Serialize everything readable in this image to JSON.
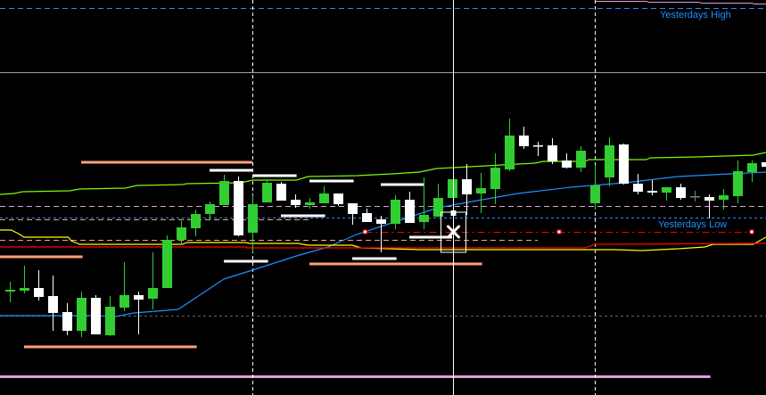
{
  "chart_data": {
    "type": "candlestick",
    "ylim": [
      1.1,
      1.1443
    ],
    "xlim": [
      -0.7,
      53
    ],
    "grid": false,
    "colors": {
      "bull": "#32cd32",
      "bear": "#ffffff",
      "doji": "#808080",
      "background": "#000000"
    },
    "candles": [
      [
        1.1116,
        1.1127,
        1.1104,
        1.1118
      ],
      [
        1.1117,
        1.1145,
        1.1114,
        1.112
      ],
      [
        1.112,
        1.114,
        1.1106,
        1.111
      ],
      [
        1.1111,
        1.1134,
        1.1072,
        1.1092
      ],
      [
        1.1093,
        1.1103,
        1.1067,
        1.1072
      ],
      [
        1.1072,
        1.1116,
        1.1065,
        1.1109
      ],
      [
        1.1109,
        1.1112,
        1.1068,
        1.1068
      ],
      [
        1.1067,
        1.1111,
        1.1066,
        1.1099
      ],
      [
        1.1098,
        1.1149,
        1.1094,
        1.1112
      ],
      [
        1.1112,
        1.1116,
        1.1068,
        1.1107
      ],
      [
        1.1108,
        1.116,
        1.1096,
        1.112
      ],
      [
        1.112,
        1.1179,
        1.112,
        1.1174
      ],
      [
        1.1174,
        1.1195,
        1.1169,
        1.1188
      ],
      [
        1.1187,
        1.1208,
        1.1178,
        1.1203
      ],
      [
        1.1203,
        1.1217,
        1.1196,
        1.1214
      ],
      [
        1.1213,
        1.1247,
        1.1213,
        1.124
      ],
      [
        1.124,
        1.1245,
        1.1178,
        1.1179
      ],
      [
        1.1182,
        1.1224,
        1.116,
        1.1214
      ],
      [
        1.1216,
        1.1242,
        1.1216,
        1.1238
      ],
      [
        1.1237,
        1.1239,
        1.1218,
        1.1218
      ],
      [
        1.1219,
        1.1225,
        1.121,
        1.1213
      ],
      [
        1.1213,
        1.1221,
        1.1209,
        1.1216
      ],
      [
        1.1215,
        1.1234,
        1.1215,
        1.1226
      ],
      [
        1.1226,
        1.1226,
        1.1212,
        1.1214
      ],
      [
        1.1215,
        1.1215,
        1.1191,
        1.1203
      ],
      [
        1.1204,
        1.1209,
        1.1194,
        1.1194
      ],
      [
        1.1197,
        1.1201,
        1.116,
        1.1192
      ],
      [
        1.1192,
        1.1224,
        1.1186,
        1.1219
      ],
      [
        1.1219,
        1.1228,
        1.1193,
        1.1193
      ],
      [
        1.1194,
        1.1244,
        1.1186,
        1.1202
      ],
      [
        1.12,
        1.1237,
        1.12,
        1.1221
      ],
      [
        1.1221,
        1.1242,
        1.1221,
        1.1242
      ],
      [
        1.1242,
        1.1259,
        1.1202,
        1.1225
      ],
      [
        1.1226,
        1.1249,
        1.1204,
        1.1232
      ],
      [
        1.1231,
        1.1271,
        1.1214,
        1.1255
      ],
      [
        1.1253,
        1.131,
        1.1251,
        1.1291
      ],
      [
        1.1291,
        1.1301,
        1.1276,
        1.1279
      ],
      [
        1.128,
        1.1284,
        1.1268,
        1.1279
      ],
      [
        1.128,
        1.1288,
        1.1259,
        1.1262
      ],
      [
        1.1263,
        1.1271,
        1.1254,
        1.1255
      ],
      [
        1.1255,
        1.1279,
        1.125,
        1.1274
      ],
      [
        1.1215,
        1.1258,
        1.1208,
        1.1235
      ],
      [
        1.1244,
        1.1289,
        1.1234,
        1.128
      ],
      [
        1.1281,
        1.1282,
        1.1236,
        1.1237
      ],
      [
        1.1237,
        1.1248,
        1.1225,
        1.1228
      ],
      [
        1.1229,
        1.1241,
        1.1224,
        1.1227
      ],
      [
        1.1227,
        1.1233,
        1.1218,
        1.1233
      ],
      [
        1.1233,
        1.1237,
        1.1219,
        1.1221
      ],
      [
        1.1223,
        1.1229,
        1.1217,
        1.1223
      ],
      [
        1.1222,
        1.1225,
        1.1198,
        1.1218
      ],
      [
        1.1219,
        1.1231,
        1.1208,
        1.1224
      ],
      [
        1.1223,
        1.1263,
        1.1215,
        1.1251
      ],
      [
        1.125,
        1.1263,
        1.1239,
        1.126
      ],
      [
        1.1261,
        1.1261,
        1.1256,
        1.1256
      ]
    ],
    "indicator_lines": [
      {
        "color": "#7cfc00",
        "points": [
          [
            -0.7,
            1.1225
          ],
          [
            0.3,
            1.1226
          ],
          [
            0.9,
            1.1228
          ],
          [
            4.2,
            1.1229
          ],
          [
            4.9,
            1.1231
          ],
          [
            8.1,
            1.1232
          ],
          [
            8.9,
            1.1235
          ],
          [
            12.1,
            1.1236
          ],
          [
            12.4,
            1.1237
          ],
          [
            16.2,
            1.1238
          ],
          [
            17,
            1.1241
          ],
          [
            20.1,
            1.1241
          ],
          [
            20.9,
            1.1245
          ],
          [
            24.3,
            1.1246
          ],
          [
            26.8,
            1.1248
          ],
          [
            28.7,
            1.125
          ],
          [
            29.9,
            1.1254
          ],
          [
            36.8,
            1.126
          ],
          [
            37.4,
            1.1262
          ],
          [
            40.3,
            1.1262
          ],
          [
            40.6,
            1.1264
          ],
          [
            44.6,
            1.1264
          ],
          [
            44.9,
            1.1266
          ],
          [
            48.1,
            1.1267
          ],
          [
            52.1,
            1.1269
          ],
          [
            53,
            1.1272
          ]
        ]
      },
      {
        "color": "#1e90ff",
        "points": [
          [
            -0.7,
            1.1089
          ],
          [
            5.6,
            1.1089
          ],
          [
            7.4,
            1.1088
          ],
          [
            8.7,
            1.1092
          ],
          [
            11.8,
            1.1096
          ],
          [
            15,
            1.113
          ],
          [
            16.8,
            1.1139
          ],
          [
            20.1,
            1.1156
          ],
          [
            22.3,
            1.1166
          ],
          [
            24.3,
            1.118
          ],
          [
            26.2,
            1.119
          ],
          [
            28.1,
            1.12
          ],
          [
            30,
            1.121
          ],
          [
            32.4,
            1.1217
          ],
          [
            35.6,
            1.1226
          ],
          [
            39.3,
            1.1233
          ],
          [
            43.1,
            1.1238
          ],
          [
            46.8,
            1.1245
          ],
          [
            53,
            1.125
          ]
        ]
      },
      {
        "color": "#ffff00",
        "points": [
          [
            -0.7,
            1.1185
          ],
          [
            0.1,
            1.1185
          ],
          [
            0.6,
            1.1181
          ],
          [
            1,
            1.1177
          ],
          [
            4.1,
            1.1177
          ],
          [
            4.3,
            1.1173
          ],
          [
            4.9,
            1.1169
          ],
          [
            12.1,
            1.1169
          ],
          [
            12.4,
            1.1171
          ],
          [
            16.5,
            1.1171
          ],
          [
            16.8,
            1.117
          ],
          [
            20.2,
            1.117
          ],
          [
            20.9,
            1.1168
          ],
          [
            24,
            1.1168
          ],
          [
            24.6,
            1.1165
          ],
          [
            28.7,
            1.1163
          ],
          [
            42.4,
            1.1163
          ],
          [
            44.3,
            1.1162
          ],
          [
            46.8,
            1.1164
          ],
          [
            48.7,
            1.1166
          ],
          [
            49.3,
            1.1169
          ],
          [
            52.1,
            1.1169
          ],
          [
            53,
            1.1177
          ]
        ]
      },
      {
        "color": "#ff0000",
        "points": [
          [
            -0.7,
            1.1166
          ],
          [
            16.6,
            1.1166
          ],
          [
            16.6,
            1.1165
          ],
          [
            40.3,
            1.1165
          ],
          [
            41,
            1.1169
          ],
          [
            53,
            1.117
          ]
        ]
      }
    ],
    "levels": [
      {
        "name": "yesterdays-high",
        "price": 1.1434,
        "from": -0.7,
        "to": 53,
        "color": "#1e90ff",
        "style": "dashed"
      },
      {
        "price": 1.1362,
        "from": -0.7,
        "to": 53,
        "color": "#a0a0a8",
        "style": "solid"
      },
      {
        "price": 1.1442,
        "from": 41,
        "to": 44.7,
        "color": "#dda0dd",
        "style": "solid"
      },
      {
        "price": 1.1441,
        "from": 44.7,
        "to": 48.4,
        "color": "#dda0dd",
        "style": "solid"
      },
      {
        "price": 1.144,
        "from": 48.4,
        "to": 52.1,
        "color": "#dda0dd",
        "style": "solid"
      },
      {
        "price": 1.1439,
        "from": 52.1,
        "to": 53,
        "color": "#dda0dd",
        "style": "solid"
      },
      {
        "price": 1.1212,
        "from": -0.7,
        "to": 53,
        "color": "#dda0dd",
        "style": "dashed"
      },
      {
        "name": "yesterdays-low",
        "price": 1.1199,
        "from": -0.7,
        "to": 53,
        "color": "#1e90ff",
        "style": "dotted"
      },
      {
        "price": 1.1197,
        "from": -0.7,
        "to": 21,
        "color": "#ffa07a",
        "style": "dashed"
      },
      {
        "price": 1.1174,
        "from": -0.7,
        "to": 37,
        "color": "#ffa07a",
        "style": "dashed"
      },
      {
        "price": 1.1183,
        "from": 24.9,
        "to": 52.1,
        "color": "#ff0000",
        "style": "dashdot"
      },
      {
        "price": 1.1089,
        "from": -0.7,
        "to": 53,
        "color": "#606060",
        "style": "dotted"
      },
      {
        "price": 1.1021,
        "from": -0.7,
        "to": 49.1,
        "color": "#dda0dd",
        "style": "thick"
      }
    ],
    "red_markers": [
      [
        24.9,
        1.1183
      ],
      [
        38.5,
        1.1183
      ],
      [
        52,
        1.1183
      ]
    ],
    "segments": [
      {
        "price": 1.1261,
        "from": 5,
        "to": 17,
        "color": "#ffa07a"
      },
      {
        "price": 1.1155,
        "from": -0.7,
        "to": 5.1,
        "color": "#ffa07a"
      },
      {
        "price": 1.1147,
        "from": 21,
        "to": 33.1,
        "color": "#ffa07a"
      },
      {
        "price": 1.1054,
        "from": 1,
        "to": 13.1,
        "color": "#ffa07a"
      },
      {
        "price": 1.1252,
        "from": 14,
        "to": 17,
        "color": "#ffffff"
      },
      {
        "price": 1.1246,
        "from": 17,
        "to": 20.1,
        "color": "#ffffff"
      },
      {
        "price": 1.124,
        "from": 21,
        "to": 24.1,
        "color": "#ffffff"
      },
      {
        "price": 1.1236,
        "from": 26,
        "to": 29,
        "color": "#ffffff"
      },
      {
        "price": 1.1201,
        "from": 19,
        "to": 22.1,
        "color": "#ffffff"
      },
      {
        "price": 1.115,
        "from": 15,
        "to": 18.1,
        "color": "#ffffff"
      },
      {
        "price": 1.1153,
        "from": 24,
        "to": 27.1,
        "color": "#ffffff"
      },
      {
        "price": 1.1177,
        "from": 28,
        "to": 31,
        "color": "#ffffff"
      }
    ],
    "period_separators": [
      17,
      41
    ],
    "crosshair": {
      "bar": 31.06,
      "price": 1.1183
    },
    "annotations": {
      "yesterdays_high": "Yesterdays High",
      "yesterdays_low": "Yesterdays Low"
    }
  }
}
